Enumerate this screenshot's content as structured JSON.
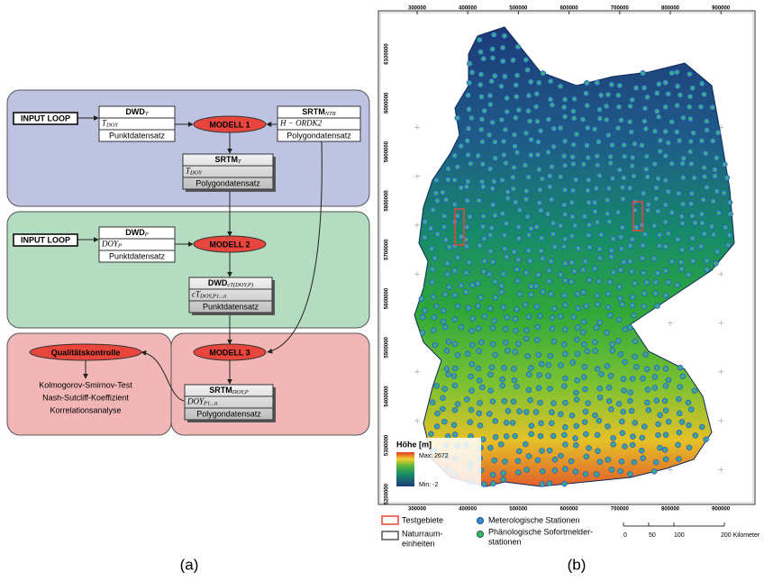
{
  "panel_a": {
    "label": "(a)",
    "input_loops": [
      "INPUT LOOP",
      "INPUT LOOP"
    ],
    "models": [
      "MODELL 1",
      "MODELL 2",
      "MODELL 3"
    ],
    "quality": {
      "title": "Qualitätskontrolle",
      "items": [
        "Kolmogorov-Smirnov-Test",
        "Nash-Sutcliff-Koeffizient",
        "Korrelationsanalyse"
      ]
    },
    "boxes": [
      {
        "name": "DWD",
        "sub": "T",
        "var": "T",
        "var_sub": "DOY",
        "type": "Punktdatensatz"
      },
      {
        "name": "SRTM",
        "sub": "NTR",
        "var": "H − ORDK2",
        "var_sub": "",
        "type": "Polygondatensatz"
      },
      {
        "name": "SRTM",
        "sub": "T",
        "var": "T",
        "var_sub": "DOY",
        "type": "Polygondatensatz"
      },
      {
        "name": "DWD",
        "sub": "P",
        "var": "DOY",
        "var_sub": "P",
        "type": "Punktdatensatz"
      },
      {
        "name": "DWD",
        "sub": "cT(DOY,P)",
        "var": "cT",
        "var_sub": "DOY,P1...n",
        "type": "Punktdatensatz"
      },
      {
        "name": "SRTM",
        "sub": "DOY,P",
        "var": "DOY",
        "var_sub": "P1...n",
        "type": "Polygondatensatz"
      }
    ]
  },
  "panel_b": {
    "label": "(b)",
    "x_ticks": [
      300000,
      400000,
      500000,
      600000,
      700000,
      800000,
      900000
    ],
    "y_ticks": [
      6100000,
      6000000,
      5900000,
      5800000,
      5700000,
      5600000,
      5500000,
      5400000,
      5300000,
      5200000
    ],
    "elevation_legend": {
      "title": "Höhe [m]",
      "max": "Max: 2672",
      "min": "Min: -2"
    },
    "legend": {
      "test_areas": "Testgebiete",
      "natural_units": [
        "Naturraum-",
        "einheiten"
      ],
      "met_stations": "Meterologische Stationen",
      "phen_stations": [
        "Phänologische Sofortmelder-",
        "stationen"
      ]
    },
    "scale": [
      "0",
      "50",
      "100",
      "200 Kilometer"
    ]
  }
}
